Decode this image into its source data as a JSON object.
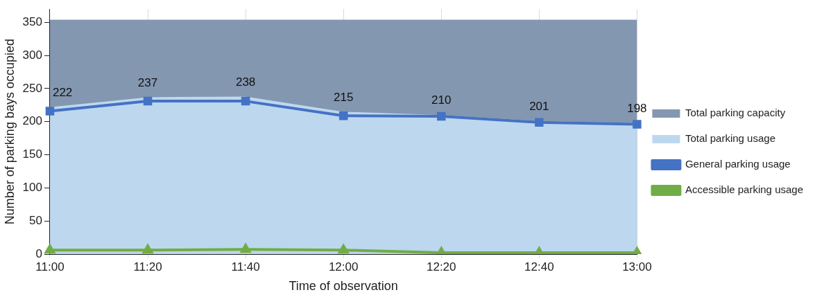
{
  "chart_data": {
    "type": "line",
    "xlabel": "Time of observation",
    "ylabel": "Number of parking bays occupied",
    "categories": [
      "11:00",
      "11:20",
      "11:40",
      "12:00",
      "12:20",
      "12:40",
      "13:00"
    ],
    "series": [
      {
        "name": "Total parking capacity",
        "type": "area",
        "color": "#8497b0",
        "marker": "none",
        "values": [
          354,
          354,
          354,
          354,
          354,
          354,
          354
        ]
      },
      {
        "name": "Total parking usage",
        "type": "area",
        "color": "#bdd7ee",
        "marker": "none",
        "values": [
          222,
          237,
          238,
          215,
          210,
          201,
          198
        ],
        "value_labels": [
          "222",
          "237",
          "238",
          "215",
          "210",
          "201",
          "198"
        ]
      },
      {
        "name": "General parking usage",
        "type": "line",
        "color": "#4472c4",
        "marker": "square",
        "values": [
          216,
          231,
          231,
          209,
          208,
          199,
          196
        ]
      },
      {
        "name": "Accessible parking usage",
        "type": "line",
        "color": "#70ad47",
        "marker": "triangle",
        "values": [
          6,
          6,
          7,
          6,
          2,
          2,
          2
        ]
      }
    ],
    "ylim": [
      0,
      370
    ],
    "yticks": [
      0,
      50,
      100,
      150,
      200,
      250,
      300,
      350
    ],
    "grid": "x",
    "legend": "right"
  }
}
